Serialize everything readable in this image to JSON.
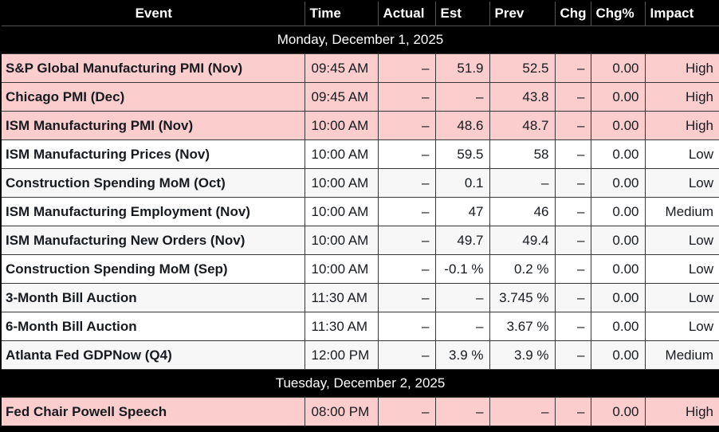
{
  "table_title": "economic-calendar",
  "header": {
    "columns": [
      "Event",
      "Time",
      "Actual",
      "Est",
      "Prev",
      "Chg",
      "Chg%",
      "Impact"
    ]
  },
  "sections": [
    {
      "date": "Monday, December 1, 2025",
      "rows": [
        {
          "event": "S&P Global Manufacturing PMI (Nov)",
          "time": "09:45 AM",
          "actual": "–",
          "est": "51.9",
          "prev": "52.5",
          "chg": "–",
          "chg_pct": "0.00",
          "impact": "High"
        },
        {
          "event": "Chicago PMI (Dec)",
          "time": "09:45 AM",
          "actual": "–",
          "est": "–",
          "prev": "43.8",
          "chg": "–",
          "chg_pct": "0.00",
          "impact": "High"
        },
        {
          "event": "ISM Manufacturing PMI (Nov)",
          "time": "10:00 AM",
          "actual": "–",
          "est": "48.6",
          "prev": "48.7",
          "chg": "–",
          "chg_pct": "0.00",
          "impact": "High"
        },
        {
          "event": "ISM Manufacturing Prices (Nov)",
          "time": "10:00 AM",
          "actual": "–",
          "est": "59.5",
          "prev": "58",
          "chg": "–",
          "chg_pct": "0.00",
          "impact": "Low"
        },
        {
          "event": "Construction Spending MoM (Oct)",
          "time": "10:00 AM",
          "actual": "–",
          "est": "0.1",
          "prev": "–",
          "chg": "–",
          "chg_pct": "0.00",
          "impact": "Low"
        },
        {
          "event": "ISM Manufacturing Employment (Nov)",
          "time": "10:00 AM",
          "actual": "–",
          "est": "47",
          "prev": "46",
          "chg": "–",
          "chg_pct": "0.00",
          "impact": "Medium"
        },
        {
          "event": "ISM Manufacturing New Orders (Nov)",
          "time": "10:00 AM",
          "actual": "–",
          "est": "49.7",
          "prev": "49.4",
          "chg": "–",
          "chg_pct": "0.00",
          "impact": "Low"
        },
        {
          "event": "Construction Spending MoM (Sep)",
          "time": "10:00 AM",
          "actual": "–",
          "est": "-0.1 %",
          "prev": "0.2 %",
          "chg": "–",
          "chg_pct": "0.00",
          "impact": "Low"
        },
        {
          "event": "3-Month Bill Auction",
          "time": "11:30 AM",
          "actual": "–",
          "est": "–",
          "prev": "3.745 %",
          "chg": "–",
          "chg_pct": "0.00",
          "impact": "Low"
        },
        {
          "event": "6-Month Bill Auction",
          "time": "11:30 AM",
          "actual": "–",
          "est": "–",
          "prev": "3.67 %",
          "chg": "–",
          "chg_pct": "0.00",
          "impact": "Low"
        },
        {
          "event": "Atlanta Fed GDPNow (Q4)",
          "time": "12:00 PM",
          "actual": "–",
          "est": "3.9 %",
          "prev": "3.9 %",
          "chg": "–",
          "chg_pct": "0.00",
          "impact": "Medium"
        }
      ]
    },
    {
      "date": "Tuesday, December 2, 2025",
      "rows": [
        {
          "event": "Fed Chair Powell Speech",
          "time": "08:00 PM",
          "actual": "–",
          "est": "–",
          "prev": "–",
          "chg": "–",
          "chg_pct": "0.00",
          "impact": "High"
        }
      ]
    }
  ],
  "colors": {
    "header_bg": "#000000",
    "header_text": "#ffffff",
    "grid_line": "#383838",
    "text": "#171b20",
    "row_bg": "#ffffff",
    "alt_row_bg": "#f7f7f7",
    "high_impact_row_bg": "#fccdcd"
  }
}
